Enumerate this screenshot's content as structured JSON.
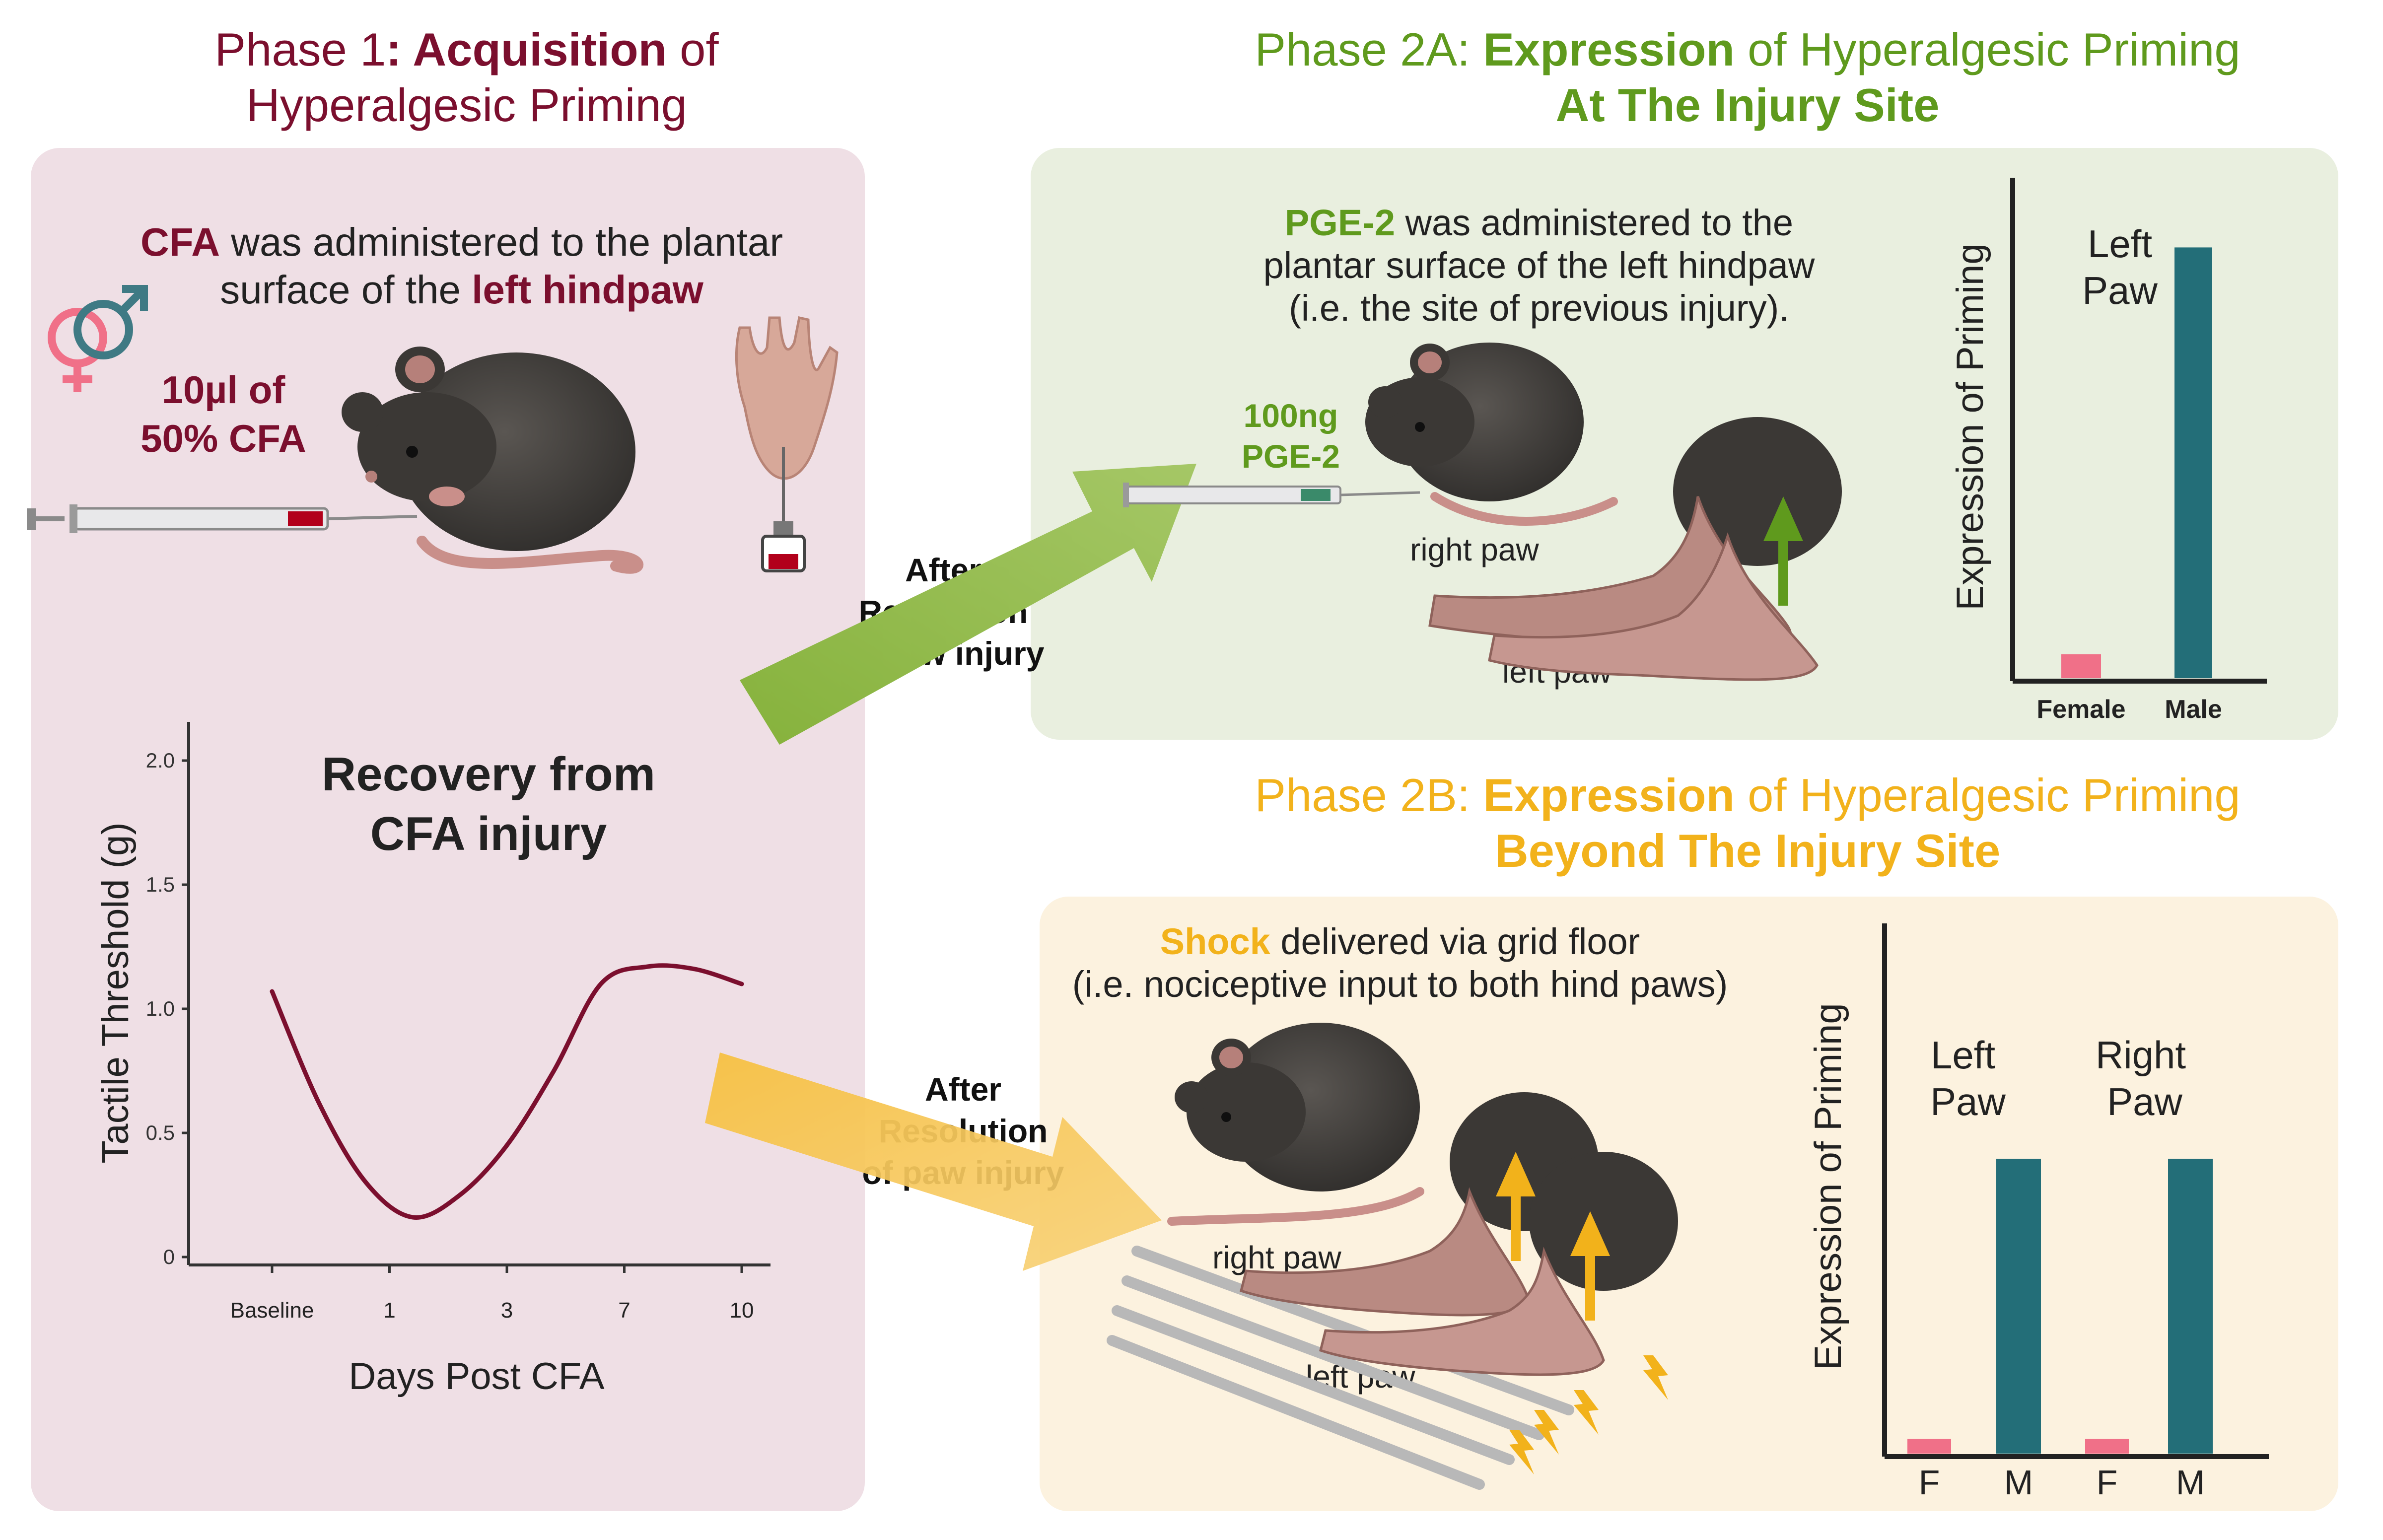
{
  "colors": {
    "phase1": "#7b0f2e",
    "phase2a": "#5f9a1d",
    "phase2b": "#f2b21b",
    "bar_female": "#f07088",
    "bar_male": "#236e78",
    "panel1_bg": "#efdfe5",
    "panel2a_bg": "#e9efdf",
    "panel2b_bg": "#fcf2df"
  },
  "phase1": {
    "title_pre": "Phase 1",
    "title_bold": ": Acquisition",
    "title_post": " of",
    "title_line2": "Hyperalgesic Priming",
    "cfa_word": "CFA",
    "cfa_text": " was administered to the plantar",
    "cfa_text2": "surface of the ",
    "cfa_site": "left hindpaw",
    "dose_line1": "10µl of",
    "dose_line2": "50% CFA",
    "icons": [
      "female-symbol",
      "male-symbol",
      "mouse",
      "syringe",
      "hindpaw"
    ]
  },
  "arrows": {
    "a1_l1": "After",
    "a1_l2": "Resolution",
    "a1_l3": "of paw injury",
    "a2_l1": "After",
    "a2_l2": "Resolution",
    "a2_l3": "of paw injury"
  },
  "phase2a": {
    "title_pre": "Phase 2A: ",
    "title_bold": "Expression",
    "title_post": " of Hyperalgesic Priming",
    "title_line2": "At The Injury Site",
    "desc_bold": "PGE-2",
    "desc_l1": " was administered to the",
    "desc_l2": "plantar surface of the left hindpaw",
    "desc_l3": "(i.e. the site of previous injury).",
    "dose_l1": "100ng",
    "dose_l2": "PGE-2",
    "right_paw": "right paw",
    "left_paw": "left paw"
  },
  "phase2b": {
    "title_pre": "Phase 2B: ",
    "title_bold": "Expression",
    "title_post": " of Hyperalgesic Priming",
    "title_line2": "Beyond The Injury Site",
    "desc_bold": "Shock",
    "desc_l1": " delivered via grid floor",
    "desc_l2": "(i.e. nociceptive input to both hind paws)",
    "right_paw": "right paw",
    "left_paw": "left paw"
  },
  "chart_data": [
    {
      "type": "line",
      "title": "Recovery from CFA injury",
      "title_l1": "Recovery from",
      "title_l2": "CFA injury",
      "xlabel": "Days Post CFA",
      "ylabel": "Tactile Threshold (g)",
      "categories": [
        "Baseline",
        "1",
        "3",
        "7",
        "10"
      ],
      "x_ticks": [
        0,
        2.5,
        5,
        7.5,
        10
      ],
      "yticks": [
        "0",
        "0.5",
        "1.0",
        "1.5",
        "2.0"
      ],
      "ytick_values": [
        0,
        0.5,
        1.0,
        1.5,
        2.0
      ],
      "ylim": [
        0,
        2.0
      ],
      "series": [
        {
          "x": [
            0,
            1,
            2,
            3,
            4,
            5,
            6,
            7,
            8,
            9,
            10
          ],
          "y": [
            1.07,
            0.62,
            0.3,
            0.16,
            0.25,
            0.45,
            0.75,
            1.1,
            1.17,
            1.16,
            1.1
          ]
        }
      ]
    },
    {
      "type": "bar",
      "title": "Left Paw",
      "title_l1": "Left",
      "title_l2": "Paw",
      "ylabel": "Expression of Priming",
      "categories": [
        "Female",
        "Male"
      ],
      "values": [
        0.05,
        0.9
      ],
      "ylim": [
        0,
        1
      ]
    },
    {
      "type": "bar",
      "ylabel": "Expression of Priming",
      "groups": [
        {
          "title_l1": "Left",
          "title_l2": "Paw",
          "categories": [
            "F",
            "M"
          ],
          "values": [
            0.05,
            1.0
          ]
        },
        {
          "title_l1": "Right",
          "title_l2": "Paw",
          "categories": [
            "F",
            "M"
          ],
          "values": [
            0.05,
            1.0
          ]
        }
      ],
      "ylim": [
        0,
        1
      ]
    }
  ]
}
